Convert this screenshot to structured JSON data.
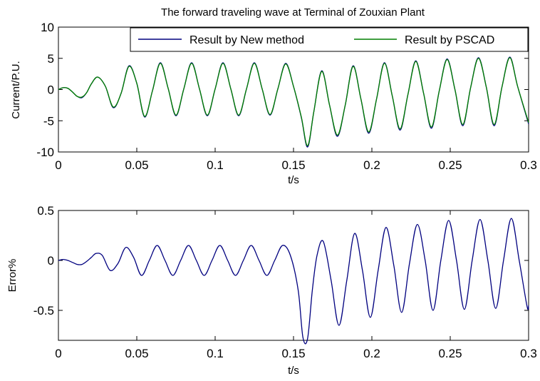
{
  "chart_data": [
    {
      "type": "line",
      "title": "The forward traveling wave at Terminal of Zouxian Plant",
      "xlabel": "t/s",
      "ylabel": "Current/P.U.",
      "xlim": [
        0,
        0.3
      ],
      "ylim": [
        -10,
        10
      ],
      "xticks": [
        0,
        0.05,
        0.1,
        0.15,
        0.2,
        0.25,
        0.3
      ],
      "xtick_labels": [
        "0",
        "0.05",
        "0.1",
        "0.15",
        "0.2",
        "0.25",
        "0.3"
      ],
      "yticks": [
        -10,
        -5,
        0,
        5,
        10
      ],
      "ytick_labels": [
        "-10",
        "-5",
        "0",
        "5",
        "10"
      ],
      "grid": false,
      "legend_position": "top-right",
      "series": [
        {
          "name": "Result by New method",
          "color": "#00007f",
          "x": [
            0,
            0.003,
            0.006,
            0.009,
            0.012,
            0.015,
            0.018,
            0.021,
            0.025,
            0.03,
            0.035,
            0.04,
            0.045,
            0.05,
            0.055,
            0.06,
            0.065,
            0.07,
            0.075,
            0.08,
            0.085,
            0.09,
            0.095,
            0.1,
            0.105,
            0.11,
            0.115,
            0.12,
            0.125,
            0.13,
            0.135,
            0.14,
            0.145,
            0.15,
            0.155,
            0.159,
            0.163,
            0.168,
            0.173,
            0.178,
            0.183,
            0.188,
            0.193,
            0.198,
            0.203,
            0.208,
            0.213,
            0.218,
            0.223,
            0.228,
            0.233,
            0.238,
            0.243,
            0.248,
            0.253,
            0.258,
            0.263,
            0.268,
            0.273,
            0.278,
            0.283,
            0.288,
            0.293,
            0.3
          ],
          "y": [
            0,
            0.3,
            0.2,
            -0.4,
            -1.1,
            -1.3,
            -0.5,
            0.9,
            2.0,
            0.5,
            -2.9,
            -0.6,
            3.8,
            1.0,
            -4.4,
            -0.2,
            4.3,
            0.2,
            -4.2,
            0.1,
            4.3,
            0.1,
            -4.2,
            0.1,
            4.3,
            0.1,
            -4.2,
            0.1,
            4.3,
            0.1,
            -4.1,
            0.1,
            4.2,
            0.5,
            -4.5,
            -9.2,
            -3.5,
            3.0,
            -2.5,
            -7.5,
            -2.5,
            3.8,
            -1.5,
            -7.0,
            -1.5,
            4.3,
            -1.0,
            -6.5,
            -0.8,
            4.6,
            -0.6,
            -6.2,
            -0.2,
            4.9,
            0.0,
            -5.8,
            0.3,
            5.1,
            0.4,
            -5.8,
            0.4,
            5.2,
            0.5,
            -5.5
          ]
        },
        {
          "name": "Result by PSCAD",
          "color": "#007f00",
          "x": [
            0,
            0.003,
            0.006,
            0.009,
            0.012,
            0.015,
            0.018,
            0.021,
            0.025,
            0.03,
            0.035,
            0.04,
            0.045,
            0.05,
            0.055,
            0.06,
            0.065,
            0.07,
            0.075,
            0.08,
            0.085,
            0.09,
            0.095,
            0.1,
            0.105,
            0.11,
            0.115,
            0.12,
            0.125,
            0.13,
            0.135,
            0.14,
            0.145,
            0.15,
            0.155,
            0.159,
            0.163,
            0.168,
            0.173,
            0.178,
            0.183,
            0.188,
            0.193,
            0.198,
            0.203,
            0.208,
            0.213,
            0.218,
            0.223,
            0.228,
            0.233,
            0.238,
            0.243,
            0.248,
            0.253,
            0.258,
            0.263,
            0.268,
            0.273,
            0.278,
            0.283,
            0.288,
            0.293,
            0.3
          ],
          "y": [
            0,
            0.3,
            0.2,
            -0.4,
            -1.1,
            -1.2,
            -0.5,
            0.9,
            2.0,
            0.5,
            -2.8,
            -0.6,
            3.7,
            1.0,
            -4.3,
            -0.2,
            4.2,
            0.2,
            -4.1,
            0.1,
            4.2,
            0.1,
            -4.1,
            0.1,
            4.2,
            0.1,
            -4.1,
            0.1,
            4.2,
            0.1,
            -4.0,
            0.1,
            4.1,
            0.5,
            -4.4,
            -9.0,
            -3.5,
            2.9,
            -2.5,
            -7.3,
            -2.5,
            3.7,
            -1.5,
            -6.8,
            -1.5,
            4.2,
            -1.0,
            -6.3,
            -0.8,
            4.5,
            -0.6,
            -6.0,
            -0.2,
            4.8,
            0.0,
            -5.6,
            0.3,
            5.0,
            0.4,
            -5.6,
            0.4,
            5.1,
            0.5,
            -5.3
          ]
        }
      ]
    },
    {
      "type": "line",
      "title": "",
      "xlabel": "t/s",
      "ylabel": "Error%",
      "xlim": [
        0,
        0.3
      ],
      "ylim": [
        -0.8,
        0.5
      ],
      "xticks": [
        0,
        0.05,
        0.1,
        0.15,
        0.2,
        0.25,
        0.3
      ],
      "xtick_labels": [
        "0",
        "0.05",
        "0.1",
        "0.15",
        "0.2",
        "0.25",
        "0.3"
      ],
      "yticks": [
        -0.5,
        0,
        0.5
      ],
      "ytick_labels": [
        "-0.5",
        "0",
        "0.5"
      ],
      "grid": false,
      "series": [
        {
          "color": "#00007f",
          "x": [
            0,
            0.003,
            0.006,
            0.009,
            0.012,
            0.015,
            0.018,
            0.021,
            0.024,
            0.028,
            0.033,
            0.038,
            0.043,
            0.048,
            0.053,
            0.058,
            0.063,
            0.068,
            0.073,
            0.078,
            0.083,
            0.088,
            0.093,
            0.098,
            0.103,
            0.108,
            0.113,
            0.118,
            0.123,
            0.128,
            0.133,
            0.138,
            0.143,
            0.148,
            0.153,
            0.156,
            0.159,
            0.162,
            0.165,
            0.169,
            0.174,
            0.179,
            0.184,
            0.189,
            0.194,
            0.199,
            0.204,
            0.209,
            0.214,
            0.219,
            0.224,
            0.229,
            0.234,
            0.239,
            0.244,
            0.249,
            0.254,
            0.259,
            0.264,
            0.269,
            0.274,
            0.279,
            0.284,
            0.289,
            0.294,
            0.299,
            0.3
          ],
          "y": [
            0,
            0.01,
            0.0,
            -0.02,
            -0.04,
            -0.04,
            -0.01,
            0.03,
            0.07,
            0.05,
            -0.1,
            -0.03,
            0.13,
            0.03,
            -0.15,
            0.0,
            0.15,
            0.0,
            -0.15,
            0.0,
            0.15,
            0.0,
            -0.15,
            0.0,
            0.15,
            0.0,
            -0.15,
            0.0,
            0.15,
            0.0,
            -0.15,
            0.0,
            0.15,
            0.05,
            -0.3,
            -0.77,
            -0.78,
            -0.3,
            0.05,
            0.19,
            -0.2,
            -0.65,
            -0.2,
            0.27,
            -0.1,
            -0.57,
            -0.1,
            0.33,
            -0.05,
            -0.52,
            -0.03,
            0.36,
            0.0,
            -0.5,
            0.0,
            0.4,
            0.0,
            -0.49,
            0.0,
            0.41,
            0.0,
            -0.48,
            0.0,
            0.42,
            0.0,
            -0.46,
            -0.45
          ]
        }
      ]
    }
  ]
}
